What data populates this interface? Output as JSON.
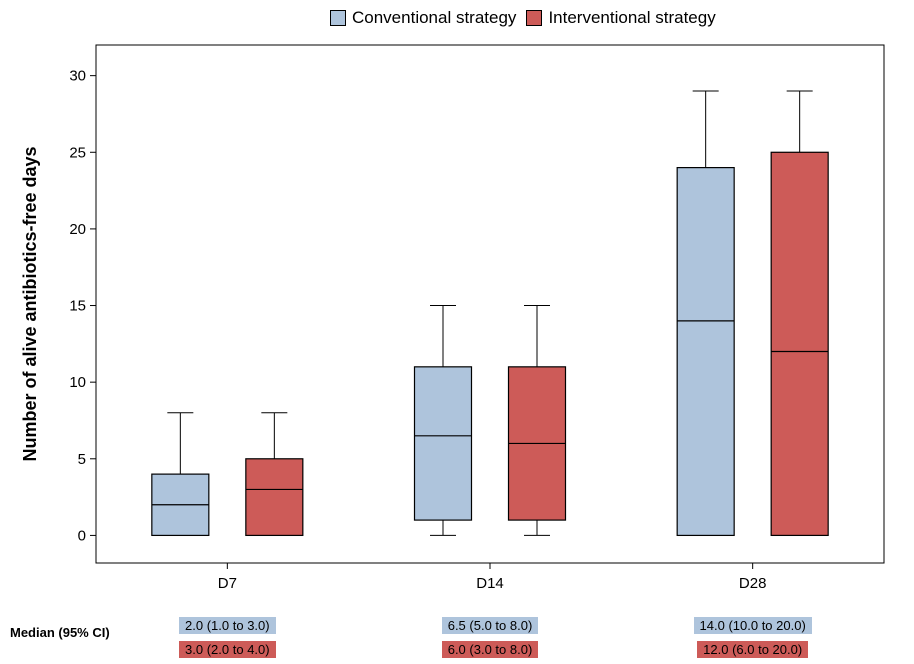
{
  "legend": {
    "conventional": "Conventional strategy",
    "interventional": "Interventional strategy"
  },
  "colors": {
    "conventional": "#aec4dc",
    "interventional": "#cd5b58"
  },
  "median_row": {
    "label": "Median (95% CI)",
    "conventional": [
      "2.0 (1.0 to 3.0)",
      "6.5 (5.0 to 8.0)",
      "14.0 (10.0 to 20.0)"
    ],
    "interventional": [
      "3.0 (2.0 to 4.0)",
      "6.0 (3.0 to 8.0)",
      "12.0 (6.0 to 20.0)"
    ]
  },
  "chart_data": {
    "type": "box",
    "ylabel": "Number of alive antibiotics-free days",
    "xlabel": "",
    "categories": [
      "D7",
      "D14",
      "D28"
    ],
    "ylim": [
      -1.8,
      32
    ],
    "yticks": [
      0,
      5,
      10,
      15,
      20,
      25,
      30
    ],
    "grid": false,
    "legend_position": "top",
    "series": [
      {
        "name": "Conventional strategy",
        "boxes": [
          {
            "whisker_low": 0,
            "q1": 0,
            "median": 2,
            "q3": 4,
            "whisker_high": 8
          },
          {
            "whisker_low": 0,
            "q1": 1,
            "median": 6.5,
            "q3": 11,
            "whisker_high": 15
          },
          {
            "whisker_low": 0,
            "q1": 0,
            "median": 14,
            "q3": 24,
            "whisker_high": 29
          }
        ]
      },
      {
        "name": "Interventional strategy",
        "boxes": [
          {
            "whisker_low": 0,
            "q1": 0,
            "median": 3,
            "q3": 5,
            "whisker_high": 8
          },
          {
            "whisker_low": 0,
            "q1": 1,
            "median": 6,
            "q3": 11,
            "whisker_high": 15
          },
          {
            "whisker_low": 0,
            "q1": 0,
            "median": 12,
            "q3": 25,
            "whisker_high": 29
          }
        ]
      }
    ]
  }
}
